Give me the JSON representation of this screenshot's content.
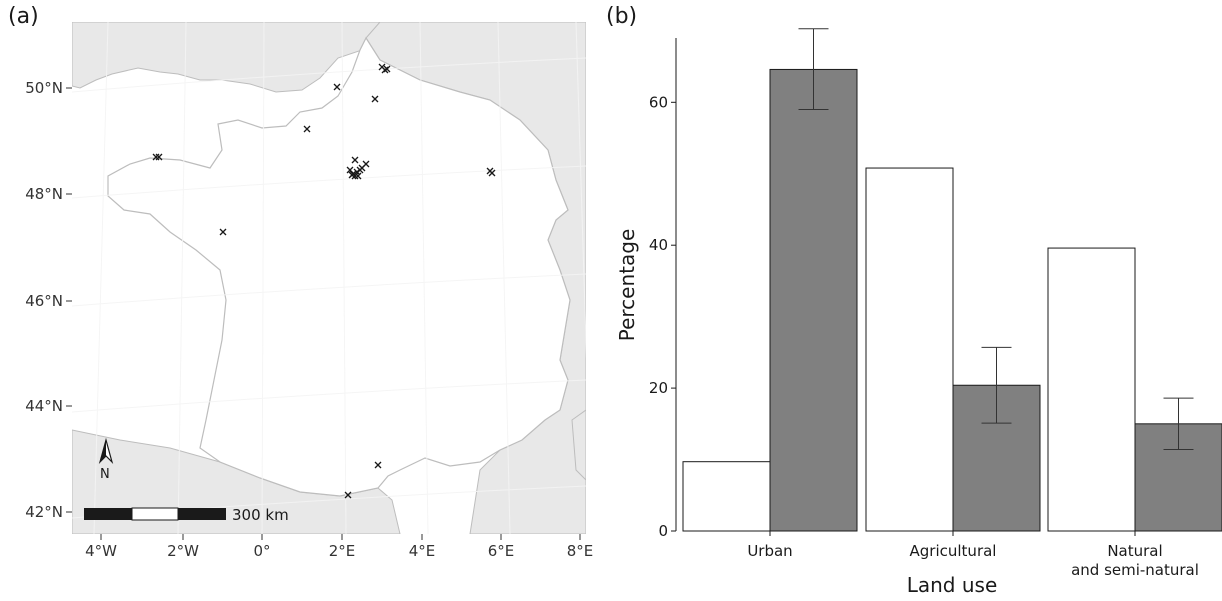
{
  "panels": {
    "a_label": "(a)",
    "b_label": "(b)"
  },
  "map": {
    "lat_ticks": [
      "50°N",
      "48°N",
      "46°N",
      "44°N",
      "42°N"
    ],
    "lon_ticks": [
      "4°W",
      "2°W",
      "0°",
      "2°E",
      "4°E",
      "6°E",
      "8°E"
    ],
    "scale_bar_label": "300 km",
    "north_label": "N",
    "colors": {
      "land_background": "#e8e8e8",
      "france": "#ffffff",
      "border": "#bdbdbd",
      "grid": "#ffffff"
    }
  },
  "chart_data": {
    "type": "bar",
    "categories": [
      "Urban",
      "Agricultural",
      "Natural and semi-natural"
    ],
    "category_labels": [
      [
        "Urban"
      ],
      [
        "Agricultural"
      ],
      [
        "Natural",
        "and semi-natural"
      ]
    ],
    "series": [
      {
        "values": [
          9.7,
          50.8,
          39.6
        ],
        "color": "#ffffff"
      },
      {
        "values": [
          64.6,
          20.4,
          15.0
        ],
        "error_low": [
          59.0,
          15.1,
          11.4
        ],
        "error_high": [
          70.3,
          25.7,
          18.6
        ],
        "color": "#808080"
      }
    ],
    "xlabel": "Land use",
    "ylabel": "Percentage",
    "ylim": [
      0,
      69
    ],
    "yticks": [
      0,
      20,
      40,
      60
    ],
    "grid": false
  }
}
